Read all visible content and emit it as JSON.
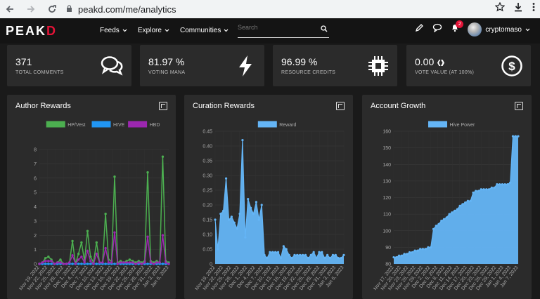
{
  "browser": {
    "url": "peakd.com/me/analytics",
    "back_icon": "arrow-left-icon",
    "forward_icon": "arrow-right-icon",
    "reload_icon": "reload-icon",
    "lock_icon": "lock-icon",
    "star_icon": "star-icon",
    "download_icon": "download-icon",
    "menu_icon": "kebab-menu-icon"
  },
  "nav": {
    "logo_main": "PEAK",
    "logo_accent": "D",
    "items": [
      {
        "label": "Feeds"
      },
      {
        "label": "Explore"
      },
      {
        "label": "Communities"
      }
    ],
    "search_placeholder": "Search",
    "notification_count": "2",
    "username": "cryptomaso",
    "brand_color": "#e31337"
  },
  "stats": [
    {
      "value": "371",
      "label": "TOTAL COMMENTS",
      "icon": "comments-icon"
    },
    {
      "value": "81.97 %",
      "label": "VOTING MANA",
      "icon": "lightning-icon"
    },
    {
      "value": "96.99 %",
      "label": "RESOURCE CREDITS",
      "icon": "chip-icon"
    },
    {
      "value": "0.00",
      "label": "VOTE VALUE (AT 100%)",
      "icon": "dollar-icon"
    }
  ],
  "charts": {
    "author": {
      "title": "Author Rewards"
    },
    "curation": {
      "title": "Curation Rewards"
    },
    "growth": {
      "title": "Account Growth"
    }
  },
  "chart_data": [
    {
      "type": "line",
      "title": "Author Rewards",
      "legend_position": "top",
      "ylim": [
        0,
        8
      ],
      "y_ticks": [
        "0",
        "1",
        "2",
        "3",
        "4",
        "5",
        "6",
        "7",
        "8"
      ],
      "x_labels": [
        "Nov 19, 2022",
        "Nov 22, 2022",
        "Nov 25, 2022",
        "Nov 28, 2022",
        "Dec 1, 2022",
        "Dec 4, 2022",
        "Dec 7, 2022",
        "Dec 10, 2022",
        "Dec 13, 2022",
        "Dec 16, 2022",
        "Dec 19, 2022",
        "Dec 22, 2022",
        "Dec 25, 2022",
        "Dec 28, 2022",
        "Dec 31, 2022",
        "Jan 3, 2023",
        "Jan 6, 2023"
      ],
      "series": [
        {
          "name": "HP/Vest",
          "color": "#4caf50",
          "values": [
            0,
            0.1,
            0.4,
            0.5,
            0.3,
            0,
            0.1,
            0.3,
            0,
            0,
            0.1,
            1.6,
            0,
            0.7,
            1.5,
            0.2,
            2.3,
            0.5,
            0.1,
            1.5,
            0.1,
            0.1,
            3.5,
            0.3,
            0.2,
            6.1,
            0.1,
            0.2,
            0.1,
            0.2,
            0.3,
            0.2,
            0.1,
            0.2,
            0.1,
            0.2,
            6.4,
            0.2,
            0.1,
            0.2,
            0.1,
            7.5,
            0.2,
            0.1
          ]
        },
        {
          "name": "HIVE",
          "color": "#2196f3",
          "values": [
            0,
            0,
            0,
            0,
            0,
            0,
            0,
            0,
            0,
            0,
            0,
            0,
            0,
            0,
            0,
            0,
            0,
            0,
            0,
            0,
            0,
            0,
            0,
            0,
            0,
            0,
            0,
            0,
            0,
            0,
            0,
            0,
            0,
            0,
            0,
            0,
            0,
            0,
            0,
            0,
            0,
            0,
            0,
            0
          ]
        },
        {
          "name": "HBD",
          "color": "#9c27b0",
          "values": [
            0,
            0.1,
            0.2,
            0.2,
            0.2,
            0,
            0.1,
            0.1,
            0,
            0,
            0.1,
            0.6,
            0,
            0.3,
            0.5,
            0.1,
            0.9,
            0.2,
            0,
            0.7,
            0.1,
            0.1,
            1.1,
            0.1,
            0.1,
            2.2,
            0,
            0.1,
            0.1,
            0.1,
            0.1,
            0.1,
            0,
            0.1,
            0,
            0.1,
            1.9,
            0.1,
            0,
            0.1,
            0.1,
            2.0,
            0.1,
            0
          ]
        }
      ]
    },
    {
      "type": "area",
      "title": "Curation Rewards",
      "legend_position": "top",
      "ylim": [
        0,
        0.45
      ],
      "y_ticks": [
        "0",
        "0.05",
        "0.10",
        "0.15",
        "0.20",
        "0.25",
        "0.30",
        "0.35",
        "0.40",
        "0.45"
      ],
      "x_labels": [
        "Nov 19, 2022",
        "Nov 22, 2022",
        "Nov 25, 2022",
        "Nov 28, 2022",
        "Dec 1, 2022",
        "Dec 4, 2022",
        "Dec 7, 2022",
        "Dec 10, 2022",
        "Dec 13, 2022",
        "Dec 16, 2022",
        "Dec 19, 2022",
        "Dec 22, 2022",
        "Dec 25, 2022",
        "Dec 28, 2022",
        "Dec 31, 2022",
        "Jan 3, 2023",
        "Jan 6, 2023"
      ],
      "series": [
        {
          "name": "Reward",
          "color": "#64b5f6",
          "values": [
            0.15,
            0.05,
            0.17,
            0.18,
            0.29,
            0.15,
            0.16,
            0.14,
            0.12,
            0.17,
            0.42,
            0.09,
            0.22,
            0.19,
            0.17,
            0.21,
            0.15,
            0.2,
            0.03,
            0.02,
            0.04,
            0.04,
            0.04,
            0.04,
            0.02,
            0.06,
            0.05,
            0.03,
            0.02,
            0.03,
            0.03,
            0.03,
            0.03,
            0.03,
            0.02,
            0.03,
            0.04,
            0.02,
            0.04,
            0.04,
            0.02,
            0.03,
            0.02,
            0.03,
            0.03,
            0.02,
            0.02,
            0.03
          ]
        }
      ]
    },
    {
      "type": "area",
      "title": "Account Growth",
      "legend_position": "top",
      "ylim": [
        80,
        160
      ],
      "y_ticks": [
        "80",
        "90",
        "100",
        "110",
        "120",
        "130",
        "140",
        "150",
        "160"
      ],
      "x_labels": [
        "Nov 17, 2022",
        "Nov 20, 2022",
        "Nov 23, 2022",
        "Nov 26, 2022",
        "Nov 29, 2022",
        "Dec 2, 2022",
        "Dec 5, 2022",
        "Dec 8, 2022",
        "Dec 11, 2022",
        "Dec 14, 2022",
        "Dec 17, 2022",
        "Dec 20, 2022",
        "Dec 23, 2022",
        "Dec 26, 2022",
        "Dec 29, 2022",
        "Jan 1, 2023",
        "Jan 4, 2023",
        "Jan 7, 2023"
      ],
      "series": [
        {
          "name": "Hive Power",
          "color": "#64b5f6",
          "values": [
            84,
            84,
            85,
            85,
            86,
            86,
            87,
            87,
            88,
            88,
            89,
            89,
            89,
            90,
            90,
            101,
            103,
            104,
            106,
            107,
            108,
            110,
            111,
            112,
            113,
            115,
            116,
            117,
            118,
            118,
            123,
            124,
            124,
            125,
            125,
            125,
            125,
            126,
            126,
            128,
            128,
            128,
            128,
            128,
            129,
            157,
            157,
            157
          ]
        }
      ]
    }
  ]
}
